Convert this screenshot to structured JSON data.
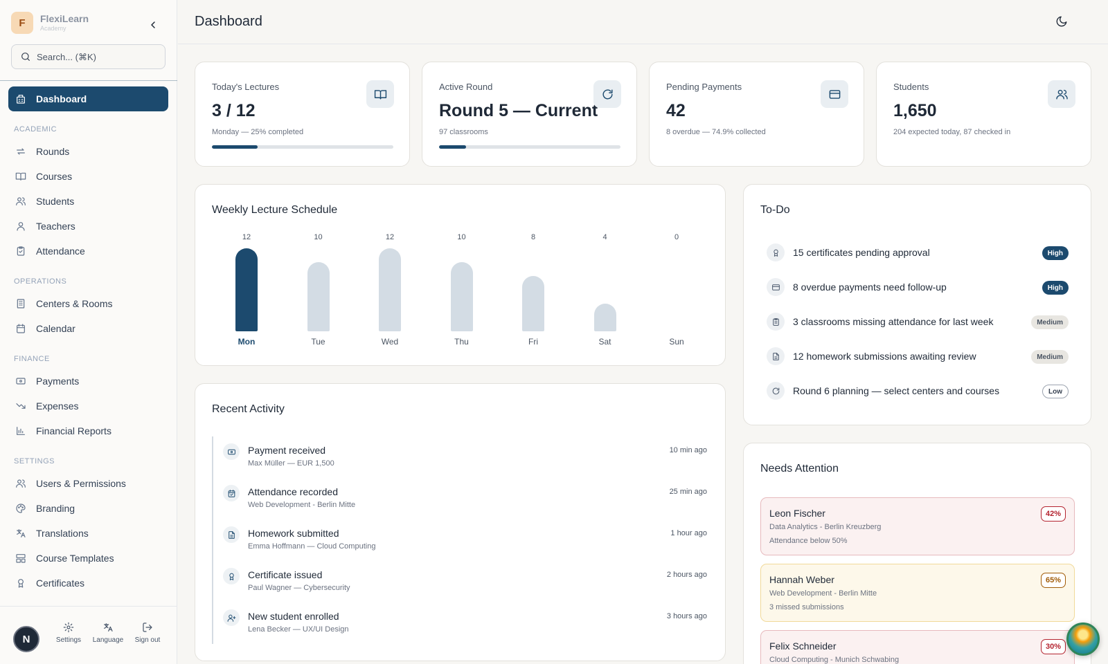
{
  "brand": {
    "logo_letter": "F",
    "name": "FlexiLearn",
    "subtitle": "Academy"
  },
  "search": {
    "placeholder": "Search... (⌘K)"
  },
  "nav": {
    "dashboard": "Dashboard",
    "sections": {
      "academic": "ACADEMIC",
      "operations": "OPERATIONS",
      "finance": "FINANCE",
      "settings": "SETTINGS"
    },
    "items": {
      "rounds": "Rounds",
      "courses": "Courses",
      "students": "Students",
      "teachers": "Teachers",
      "attendance": "Attendance",
      "centers": "Centers & Rooms",
      "calendar": "Calendar",
      "payments": "Payments",
      "expenses": "Expenses",
      "reports": "Financial Reports",
      "users": "Users & Permissions",
      "branding": "Branding",
      "translations": "Translations",
      "templates": "Course Templates",
      "certificates": "Certificates"
    }
  },
  "sidebar_bottom": {
    "avatar_letter": "N",
    "settings": "Settings",
    "language": "Language",
    "signout": "Sign out"
  },
  "header": {
    "title": "Dashboard"
  },
  "stats": [
    {
      "label": "Today's Lectures",
      "value": "3 / 12",
      "sub": "Monday — 25% completed",
      "icon": "book-open-icon",
      "progress": 0.25
    },
    {
      "label": "Active Round",
      "value": "Round 5 — Current",
      "sub": "97 classrooms",
      "icon": "refresh-icon",
      "progress": 0.15
    },
    {
      "label": "Pending Payments",
      "value": "42",
      "sub": "8 overdue — 74.9% collected",
      "icon": "credit-card-icon"
    },
    {
      "label": "Students",
      "value": "1,650",
      "sub": "204 expected today, 87 checked in",
      "icon": "users-icon"
    }
  ],
  "schedule": {
    "title": "Weekly Lecture Schedule"
  },
  "chart_data": {
    "type": "bar",
    "categories": [
      "Mon",
      "Tue",
      "Wed",
      "Thu",
      "Fri",
      "Sat",
      "Sun"
    ],
    "values": [
      12,
      10,
      12,
      10,
      8,
      4,
      0
    ],
    "highlight": "Mon",
    "ylim": [
      0,
      12
    ],
    "colors": {
      "highlight": "#1c4a6e",
      "default": "#d3dce4"
    }
  },
  "activity": {
    "title": "Recent Activity",
    "items": [
      {
        "title": "Payment received",
        "sub": "Max Müller — EUR 1,500",
        "time": "10 min ago",
        "icon": "banknote-icon"
      },
      {
        "title": "Attendance recorded",
        "sub": "Web Development - Berlin Mitte",
        "time": "25 min ago",
        "icon": "calendar-check-icon"
      },
      {
        "title": "Homework submitted",
        "sub": "Emma Hoffmann — Cloud Computing",
        "time": "1 hour ago",
        "icon": "file-text-icon"
      },
      {
        "title": "Certificate issued",
        "sub": "Paul Wagner — Cybersecurity",
        "time": "2 hours ago",
        "icon": "award-icon"
      },
      {
        "title": "New student enrolled",
        "sub": "Lena Becker — UX/UI Design",
        "time": "3 hours ago",
        "icon": "user-plus-icon"
      }
    ]
  },
  "todo": {
    "title": "To-Do",
    "items": [
      {
        "text": "15 certificates pending approval",
        "priority": "High",
        "level": "high",
        "icon": "award-icon"
      },
      {
        "text": "8 overdue payments need follow-up",
        "priority": "High",
        "level": "high",
        "icon": "credit-card-icon"
      },
      {
        "text": "3 classrooms missing attendance for last week",
        "priority": "Medium",
        "level": "medium",
        "icon": "clipboard-icon"
      },
      {
        "text": "12 homework submissions awaiting review",
        "priority": "Medium",
        "level": "medium",
        "icon": "file-text-icon"
      },
      {
        "text": "Round 6 planning — select centers and courses",
        "priority": "Low",
        "level": "low",
        "icon": "refresh-icon"
      }
    ]
  },
  "attention": {
    "title": "Needs Attention",
    "items": [
      {
        "name": "Leon Fischer",
        "sub": "Data Analytics - Berlin Kreuzberg",
        "note": "Attendance below 50%",
        "pct": "42%",
        "bg": "#fbf1f1",
        "border": "#e7b9bd",
        "pct_color": "#b4232f"
      },
      {
        "name": "Hannah Weber",
        "sub": "Web Development - Berlin Mitte",
        "note": "3 missed submissions",
        "pct": "65%",
        "bg": "#fdf8ea",
        "border": "#f1d999",
        "pct_color": "#a15c07"
      },
      {
        "name": "Felix Schneider",
        "sub": "Cloud Computing - Munich Schwabing",
        "note": "",
        "pct": "30%",
        "bg": "#fbf1f1",
        "border": "#e7b9bd",
        "pct_color": "#b4232f"
      }
    ]
  }
}
